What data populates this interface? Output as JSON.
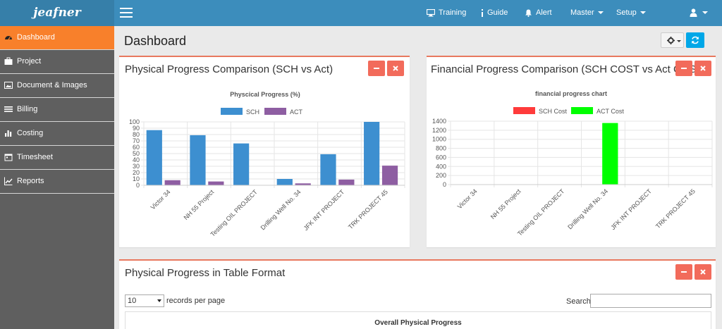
{
  "app": {
    "logo": "jeafner"
  },
  "topnav": {
    "training": "Training",
    "guide": "Guide",
    "alert": "Alert",
    "master": "Master",
    "setup": "Setup"
  },
  "sidebar": {
    "items": [
      {
        "label": "Dashboard",
        "icon": "dashboard-icon",
        "active": true
      },
      {
        "label": "Project",
        "icon": "briefcase-icon",
        "active": false
      },
      {
        "label": "Document & Images",
        "icon": "image-icon",
        "active": false
      },
      {
        "label": "Billing",
        "icon": "list-icon",
        "active": false
      },
      {
        "label": "Costing",
        "icon": "bar-chart-icon",
        "active": false
      },
      {
        "label": "Timesheet",
        "icon": "calendar-icon",
        "active": false
      },
      {
        "label": "Reports",
        "icon": "line-chart-icon",
        "active": false
      }
    ]
  },
  "page": {
    "title": "Dashboard"
  },
  "panels": {
    "physical": {
      "title": "Physical Progress Comparison (SCH vs Act)"
    },
    "financial": {
      "title": "Financial Progress Comparison (SCH COST vs Act COST)"
    },
    "table": {
      "title": "Physical Progress in Table Format",
      "records_value": "10",
      "records_label": "records per page",
      "search_label": "Search:",
      "caption": "Overall Physical Progress"
    }
  },
  "colors": {
    "topbar": "#3c8dbc",
    "accent": "#f8802b",
    "sch": "#3d8fd0",
    "act": "#8e5ea2",
    "sch_cost": "#ff3b3b",
    "act_cost": "#00ff00"
  },
  "chart_data": [
    {
      "type": "bar",
      "title": "Physcical Progress (%)",
      "categories": [
        "Victor 34",
        "NH 55 Project",
        "Testing OIL PROJECT",
        "Drilling Well No. 34",
        "JFK INT PROJECT",
        "TRK PROJECT 45"
      ],
      "series": [
        {
          "name": "SCH",
          "values": [
            87,
            79,
            66,
            10,
            49,
            100
          ]
        },
        {
          "name": "ACT",
          "values": [
            8,
            6,
            0,
            3,
            9,
            31
          ]
        }
      ],
      "ylim": [
        0,
        100
      ],
      "yticks": [
        0,
        10,
        20,
        30,
        40,
        50,
        60,
        70,
        80,
        90,
        100
      ],
      "legend": "top",
      "grid": true
    },
    {
      "type": "bar",
      "title": "financial progress chart",
      "categories": [
        "Victor 34",
        "NH 55 Project",
        "Testing OIL PROJECT",
        "Drilling Well No. 34",
        "JFK INT PROJECT",
        "TRK PROJECT 45"
      ],
      "series": [
        {
          "name": "SCH Cost",
          "values": [
            0,
            0,
            0,
            0,
            0,
            0
          ]
        },
        {
          "name": "ACT Cost",
          "values": [
            0,
            0,
            0,
            1360,
            0,
            0
          ]
        }
      ],
      "ylim": [
        0,
        1400
      ],
      "yticks": [
        0,
        200,
        400,
        600,
        800,
        1000,
        1200,
        1400
      ],
      "legend": "top",
      "grid": true
    }
  ]
}
